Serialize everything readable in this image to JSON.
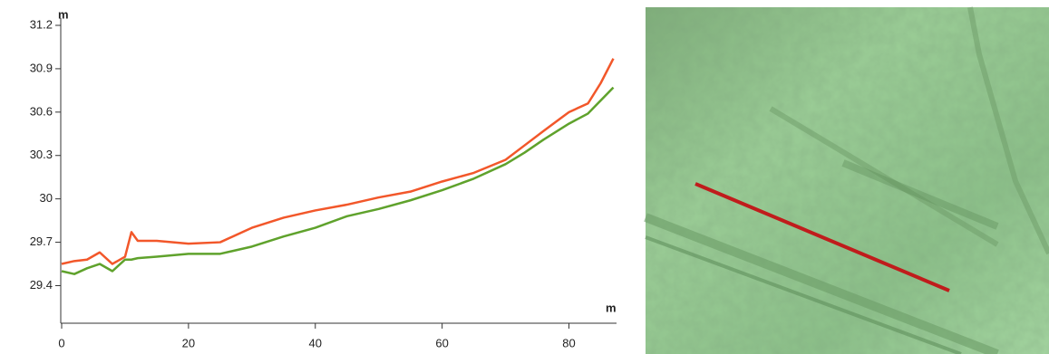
{
  "chart_data": {
    "type": "line",
    "y_label": "m",
    "x_label": "m",
    "x": [
      0,
      2,
      4,
      6,
      8,
      10,
      11,
      12,
      15,
      20,
      25,
      30,
      35,
      40,
      45,
      50,
      55,
      60,
      65,
      70,
      73,
      76,
      80,
      83,
      85,
      87
    ],
    "series": [
      {
        "color": "#f2572a",
        "values": [
          29.55,
          29.57,
          29.58,
          29.63,
          29.55,
          29.6,
          29.77,
          29.71,
          29.71,
          29.69,
          29.7,
          29.8,
          29.87,
          29.92,
          29.96,
          30.01,
          30.05,
          30.12,
          30.18,
          30.27,
          30.37,
          30.47,
          30.6,
          30.66,
          30.8,
          30.97
        ]
      },
      {
        "color": "#5fa22c",
        "values": [
          29.5,
          29.48,
          29.52,
          29.55,
          29.5,
          29.58,
          29.58,
          29.59,
          29.6,
          29.62,
          29.62,
          29.67,
          29.74,
          29.8,
          29.88,
          29.93,
          29.99,
          30.06,
          30.14,
          30.24,
          30.32,
          30.41,
          30.52,
          30.59,
          30.68,
          30.77
        ]
      }
    ],
    "xlim": [
      0,
      87.5
    ],
    "xticks": [
      0,
      20,
      40,
      60,
      80
    ],
    "ylim": [
      29.14,
      31.2
    ],
    "yticks": [
      31.2,
      30.9,
      30.6,
      30.3,
      30,
      29.7,
      29.4
    ]
  }
}
